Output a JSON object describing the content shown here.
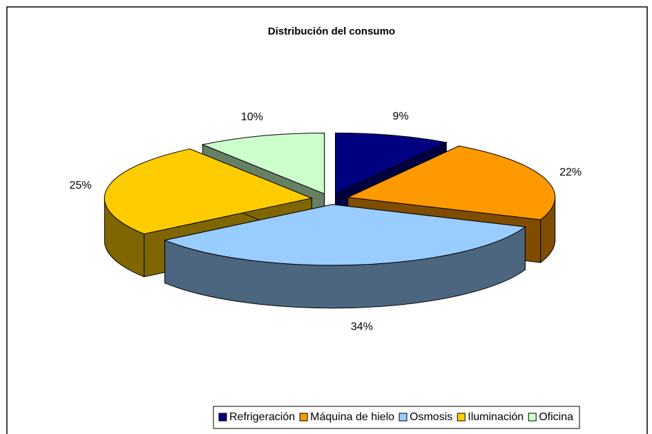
{
  "chart_data": {
    "type": "pie",
    "title": "Distribución del consumo",
    "categories": [
      "Refrigeración",
      "Máquina de hielo",
      "Osmosis",
      "Iluminación",
      "Oficina"
    ],
    "values": [
      9,
      22,
      34,
      25,
      10
    ],
    "value_labels": [
      "9%",
      "22%",
      "34%",
      "25%",
      "10%"
    ],
    "colors": [
      "#000080",
      "#FF9900",
      "#99CCFF",
      "#FFCC00",
      "#CCFFCC"
    ],
    "legend": "bottom",
    "exploded": true,
    "three_d": true
  }
}
